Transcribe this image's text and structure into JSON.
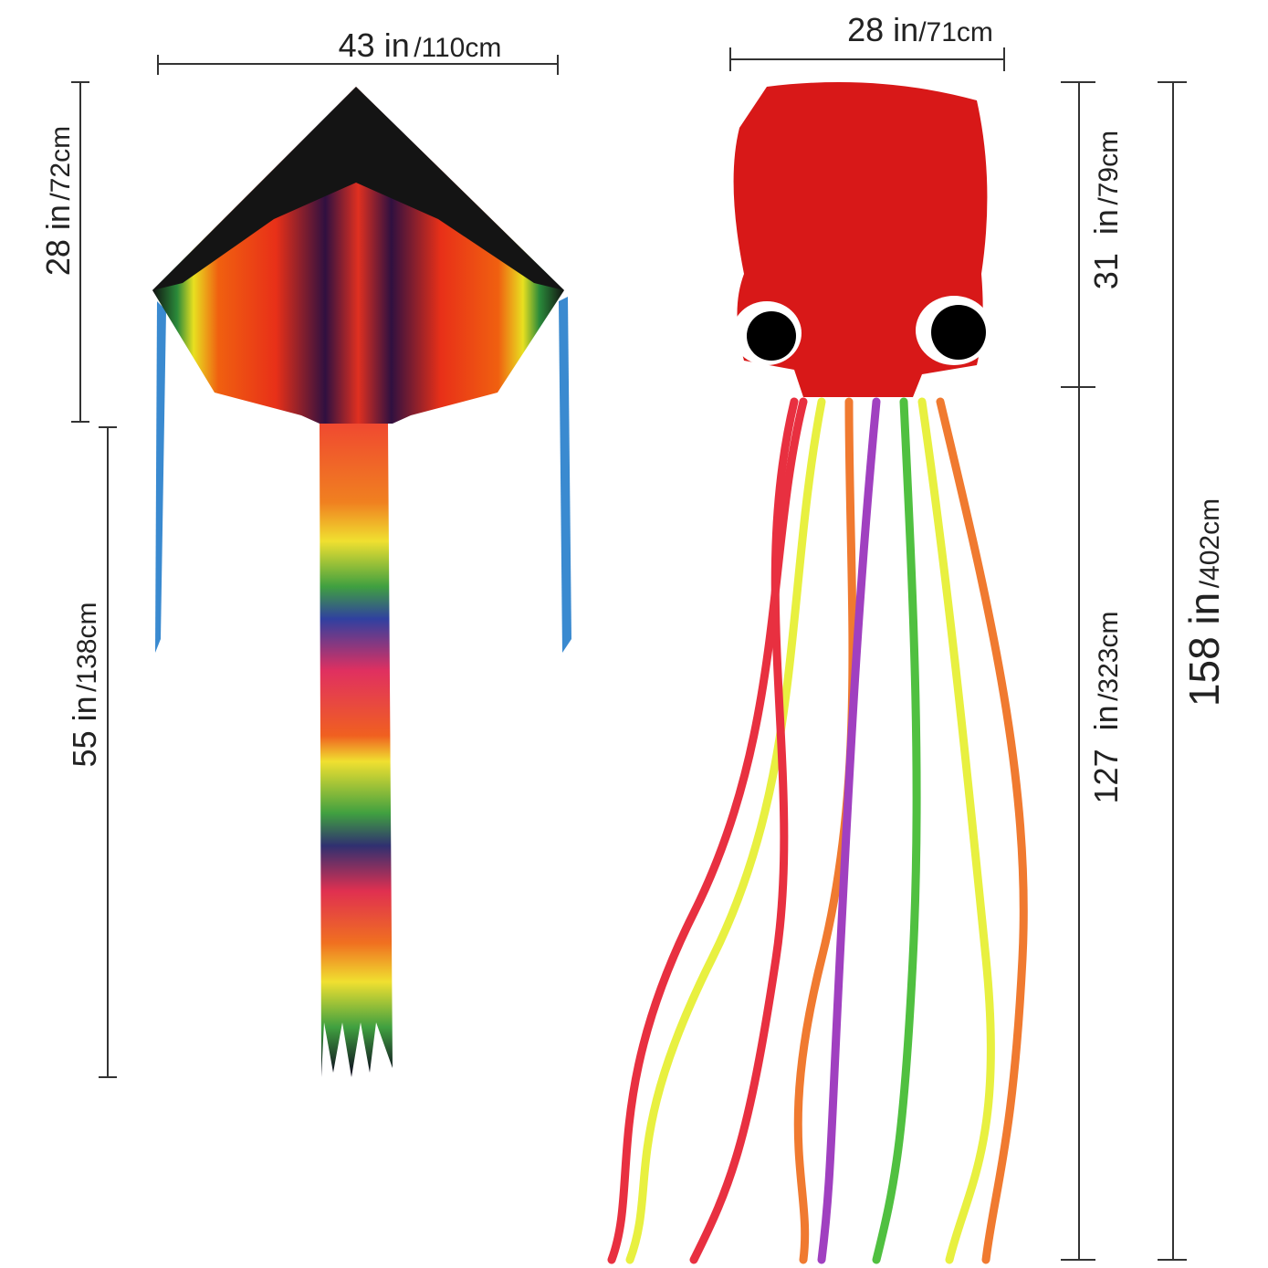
{
  "delta_kite": {
    "width": {
      "inches": "43 in",
      "cm": "/110cm"
    },
    "height": {
      "inches": "28 in",
      "cm": "/72cm"
    },
    "tail": {
      "inches": "55 in",
      "cm": "/138cm"
    }
  },
  "octopus_kite": {
    "width": {
      "inches": "28 in",
      "cm": "/71cm"
    },
    "head": {
      "inches": "31  in",
      "cm": "/79cm"
    },
    "tentacles": {
      "inches": "127  in",
      "cm": "/323cm"
    },
    "total": {
      "inches": "158 in",
      "cm": "/402cm"
    }
  }
}
